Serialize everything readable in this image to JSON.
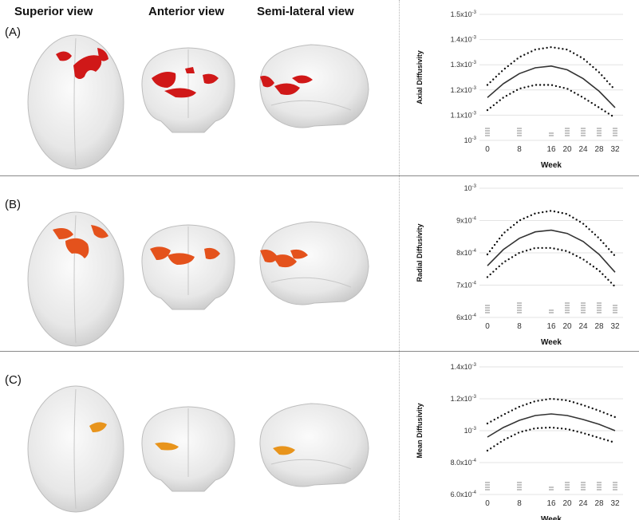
{
  "headers": {
    "superior": "Superior view",
    "anterior": "Anterior view",
    "semilateral": "Semi-lateral view"
  },
  "panels": [
    {
      "label": "(A)",
      "blob_color": "#d01818"
    },
    {
      "label": "(B)",
      "blob_color": "#e4521c"
    },
    {
      "label": "(C)",
      "blob_color": "#e8941c"
    }
  ],
  "chart_data": [
    {
      "type": "line",
      "ylabel": "Axial Diffusivity",
      "xlabel": "Week",
      "x_ticks": [
        "0",
        "8",
        "16",
        "20",
        "24",
        "28",
        "32"
      ],
      "x_tick_values": [
        0,
        8,
        16,
        20,
        24,
        28,
        32
      ],
      "y_ticks": [
        {
          "base": "10",
          "exp": "-3",
          "value": 1.0
        },
        {
          "base": "1.1x10",
          "exp": "-3",
          "value": 1.1
        },
        {
          "base": "1.2x10",
          "exp": "-3",
          "value": 1.2
        },
        {
          "base": "1.3x10",
          "exp": "-3",
          "value": 1.3
        },
        {
          "base": "1.4x10",
          "exp": "-3",
          "value": 1.4
        },
        {
          "base": "1.5x10",
          "exp": "-3",
          "value": 1.5
        }
      ],
      "ylim": [
        1.0,
        1.5
      ],
      "grid": true,
      "series": [
        {
          "style": "solid",
          "x": [
            0,
            4,
            8,
            12,
            16,
            20,
            24,
            28,
            32
          ],
          "y": [
            1.17,
            1.225,
            1.265,
            1.288,
            1.295,
            1.28,
            1.245,
            1.195,
            1.13
          ]
        },
        {
          "style": "dotted",
          "x": [
            0,
            4,
            8,
            12,
            16,
            20,
            24,
            28,
            32
          ],
          "y": [
            1.22,
            1.28,
            1.33,
            1.36,
            1.37,
            1.36,
            1.325,
            1.27,
            1.2
          ]
        },
        {
          "style": "dotted",
          "x": [
            0,
            4,
            8,
            12,
            16,
            20,
            24,
            28,
            32
          ],
          "y": [
            1.12,
            1.17,
            1.205,
            1.22,
            1.22,
            1.205,
            1.17,
            1.13,
            1.09
          ]
        }
      ],
      "rug": [
        {
          "x": 0,
          "n": 4
        },
        {
          "x": 8,
          "n": 4
        },
        {
          "x": 16,
          "n": 2
        },
        {
          "x": 20,
          "n": 4
        },
        {
          "x": 24,
          "n": 4
        },
        {
          "x": 28,
          "n": 4
        },
        {
          "x": 32,
          "n": 4
        }
      ]
    },
    {
      "type": "line",
      "ylabel": "Radial Diffusivity",
      "xlabel": "Week",
      "x_ticks": [
        "0",
        "8",
        "16",
        "20",
        "24",
        "28",
        "32"
      ],
      "x_tick_values": [
        0,
        8,
        16,
        20,
        24,
        28,
        32
      ],
      "y_ticks": [
        {
          "base": "6x10",
          "exp": "-4",
          "value": 0.6
        },
        {
          "base": "7x10",
          "exp": "-4",
          "value": 0.7
        },
        {
          "base": "8x10",
          "exp": "-4",
          "value": 0.8
        },
        {
          "base": "9x10",
          "exp": "-4",
          "value": 0.9
        },
        {
          "base": "10",
          "exp": "-3",
          "value": 1.0
        }
      ],
      "ylim": [
        0.6,
        1.0
      ],
      "grid": true,
      "series": [
        {
          "style": "solid",
          "x": [
            0,
            4,
            8,
            12,
            16,
            20,
            24,
            28,
            32
          ],
          "y": [
            0.76,
            0.81,
            0.845,
            0.865,
            0.87,
            0.86,
            0.835,
            0.795,
            0.74
          ]
        },
        {
          "style": "dotted",
          "x": [
            0,
            4,
            8,
            12,
            16,
            20,
            24,
            28,
            32
          ],
          "y": [
            0.795,
            0.86,
            0.9,
            0.922,
            0.93,
            0.92,
            0.89,
            0.845,
            0.79
          ]
        },
        {
          "style": "dotted",
          "x": [
            0,
            4,
            8,
            12,
            16,
            20,
            24,
            28,
            32
          ],
          "y": [
            0.725,
            0.77,
            0.8,
            0.815,
            0.815,
            0.805,
            0.78,
            0.745,
            0.695
          ]
        }
      ],
      "rug": [
        {
          "x": 0,
          "n": 4
        },
        {
          "x": 8,
          "n": 5
        },
        {
          "x": 16,
          "n": 2
        },
        {
          "x": 20,
          "n": 5
        },
        {
          "x": 24,
          "n": 5
        },
        {
          "x": 28,
          "n": 5
        },
        {
          "x": 32,
          "n": 4
        }
      ]
    },
    {
      "type": "line",
      "ylabel": "Mean Diffusivity",
      "xlabel": "Week",
      "x_ticks": [
        "0",
        "8",
        "16",
        "20",
        "24",
        "28",
        "32"
      ],
      "x_tick_values": [
        0,
        8,
        16,
        20,
        24,
        28,
        32
      ],
      "y_ticks": [
        {
          "base": "6.0x10",
          "exp": "-4",
          "value": 0.6
        },
        {
          "base": "8.0x10",
          "exp": "-4",
          "value": 0.8
        },
        {
          "base": "10",
          "exp": "-3",
          "value": 1.0
        },
        {
          "base": "1.2x10",
          "exp": "-3",
          "value": 1.2
        },
        {
          "base": "1.4x10",
          "exp": "-3",
          "value": 1.4
        }
      ],
      "ylim": [
        0.6,
        1.4
      ],
      "grid": true,
      "series": [
        {
          "style": "solid",
          "x": [
            0,
            4,
            8,
            12,
            16,
            20,
            24,
            28,
            32
          ],
          "y": [
            0.96,
            1.02,
            1.065,
            1.095,
            1.105,
            1.095,
            1.07,
            1.04,
            1.0
          ]
        },
        {
          "style": "dotted",
          "x": [
            0,
            4,
            8,
            12,
            16,
            20,
            24,
            28,
            32
          ],
          "y": [
            1.045,
            1.1,
            1.15,
            1.185,
            1.2,
            1.19,
            1.16,
            1.125,
            1.085
          ]
        },
        {
          "style": "dotted",
          "x": [
            0,
            4,
            8,
            12,
            16,
            20,
            24,
            28,
            32
          ],
          "y": [
            0.875,
            0.94,
            0.99,
            1.015,
            1.02,
            1.01,
            0.985,
            0.955,
            0.925
          ]
        }
      ],
      "rug": [
        {
          "x": 0,
          "n": 4
        },
        {
          "x": 8,
          "n": 4
        },
        {
          "x": 16,
          "n": 2
        },
        {
          "x": 20,
          "n": 4
        },
        {
          "x": 24,
          "n": 4
        },
        {
          "x": 28,
          "n": 4
        },
        {
          "x": 32,
          "n": 4
        }
      ]
    }
  ]
}
